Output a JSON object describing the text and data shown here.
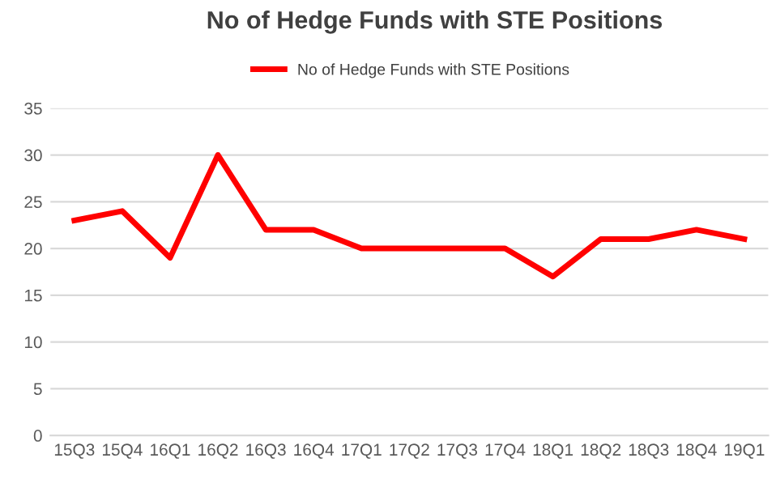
{
  "chart_data": {
    "type": "line",
    "title": "No of Hedge Funds with STE Positions",
    "categories": [
      "15Q3",
      "15Q4",
      "16Q1",
      "16Q2",
      "16Q3",
      "16Q4",
      "17Q1",
      "17Q2",
      "17Q3",
      "17Q4",
      "18Q1",
      "18Q2",
      "18Q3",
      "18Q4",
      "19Q1"
    ],
    "series": [
      {
        "name": "No of Hedge Funds with STE Positions",
        "color": "#ff0000",
        "values": [
          23,
          24,
          19,
          30,
          22,
          22,
          20,
          20,
          20,
          20,
          17,
          21,
          21,
          22,
          21
        ]
      }
    ],
    "ylim": [
      0,
      35
    ],
    "yticks": [
      0,
      5,
      10,
      15,
      20,
      25,
      30,
      35
    ],
    "grid": "y",
    "legend": "top",
    "marker": "none",
    "line_style": "solid"
  }
}
